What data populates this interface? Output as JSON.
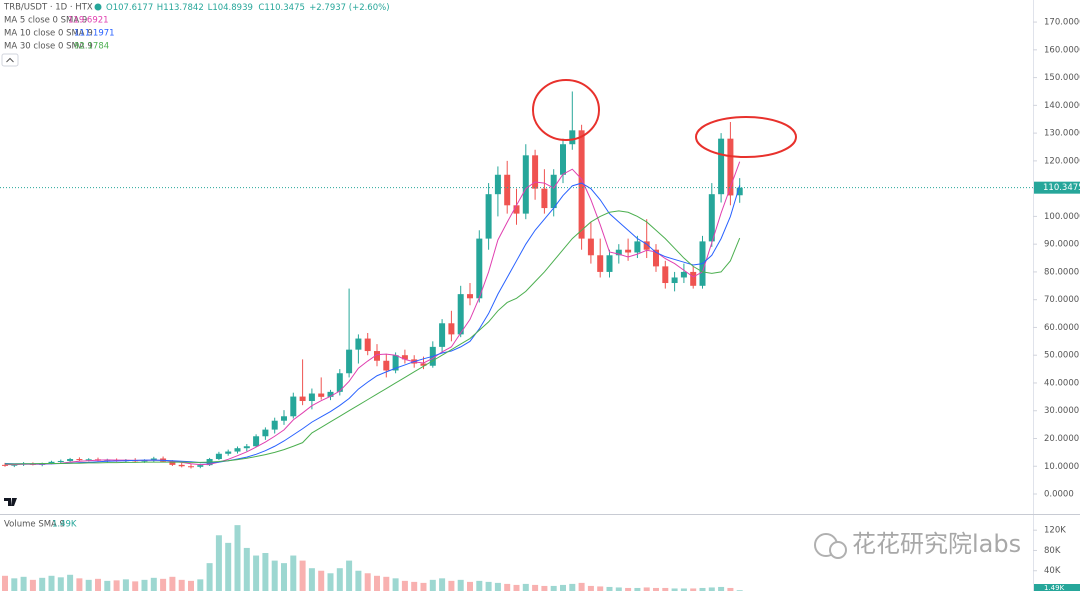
{
  "chart_data": [
    {
      "type": "candlestick",
      "symbol": "TRB/USDT · 1D · HTX",
      "ohlc_labels": [
        "O107.6177",
        "H113.7842",
        "L104.8939",
        "C110.3475",
        "+2.7937 (+2.60%)"
      ],
      "up_color": "#26a69a",
      "down_color": "#ef5350",
      "open": [
        10.5,
        10.2,
        10.6,
        11.0,
        10.5,
        11.1,
        11.6,
        11.9,
        12.6,
        12.2,
        12.5,
        12.0,
        12.3,
        11.9,
        12.2,
        11.8,
        12.1,
        12.8,
        11.7,
        10.5,
        10.0,
        9.8,
        10.4,
        12.6,
        14.5,
        15.3,
        16.5,
        17.2,
        20.8,
        23.2,
        26.4,
        28.0,
        35.1,
        33.5,
        36.2,
        35.0,
        36.8,
        43.5,
        52.0,
        56.0,
        51.5,
        48.0,
        44.5,
        50.0,
        48.5,
        47.0,
        46.2,
        53.0,
        61.5,
        57.5,
        72.0,
        70.5,
        92.0,
        108.0,
        115.0,
        104.0,
        101.0,
        122.0,
        110.0,
        103.0,
        115.0,
        126.0,
        131.0,
        92.0,
        86.0,
        80.0,
        86.0,
        88.0,
        87.0,
        91.0,
        88.0,
        82.0,
        76.0,
        78.0,
        80.0,
        75.0,
        91.0,
        108.0,
        128.0,
        107.6177
      ],
      "high": [
        11.2,
        10.9,
        11.5,
        11.4,
        11.3,
        12.0,
        12.4,
        13.0,
        13.2,
        12.9,
        13.1,
        12.7,
        12.8,
        12.6,
        12.9,
        12.5,
        13.4,
        13.5,
        12.2,
        11.3,
        10.8,
        10.9,
        13.0,
        15.2,
        16.0,
        17.1,
        18.0,
        21.5,
        24.0,
        27.5,
        30.2,
        36.5,
        48.5,
        38.0,
        42.0,
        37.5,
        45.0,
        74.0,
        57.5,
        58.0,
        54.0,
        50.5,
        51.0,
        52.0,
        50.0,
        49.5,
        55.0,
        63.0,
        66.0,
        75.0,
        76.0,
        95.0,
        112.0,
        118.0,
        120.0,
        110.0,
        126.0,
        124.0,
        117.0,
        117.0,
        128.0,
        145.0,
        133.0,
        98.0,
        92.0,
        88.0,
        90.0,
        92.0,
        93.0,
        99.0,
        90.0,
        84.0,
        80.0,
        83.0,
        82.0,
        93.0,
        112.0,
        130.0,
        134.0,
        113.7842
      ],
      "low": [
        9.8,
        9.7,
        10.1,
        10.3,
        10.0,
        10.7,
        11.0,
        11.5,
        11.9,
        11.7,
        11.8,
        11.4,
        11.6,
        11.3,
        11.5,
        11.2,
        11.6,
        11.4,
        10.1,
        9.6,
        9.2,
        9.3,
        10.1,
        12.2,
        13.8,
        14.6,
        15.4,
        16.8,
        19.5,
        21.8,
        24.9,
        27.2,
        32.0,
        30.5,
        34.0,
        33.8,
        35.5,
        42.0,
        47.0,
        50.0,
        46.0,
        42.0,
        43.5,
        47.0,
        45.5,
        45.0,
        45.5,
        51.0,
        55.0,
        56.5,
        68.0,
        69.0,
        88.0,
        100.0,
        101.0,
        97.0,
        99.0,
        106.0,
        101.0,
        100.0,
        112.0,
        124.0,
        88.0,
        83.0,
        78.0,
        78.0,
        83.0,
        84.0,
        85.0,
        85.0,
        80.0,
        74.0,
        73.0,
        76.0,
        74.0,
        74.0,
        89.0,
        105.0,
        104.0,
        104.8939
      ],
      "close": [
        10.2,
        10.6,
        11.0,
        10.5,
        11.1,
        11.6,
        11.9,
        12.6,
        12.2,
        12.5,
        12.0,
        12.3,
        11.9,
        12.2,
        11.8,
        12.1,
        12.8,
        11.7,
        10.5,
        10.0,
        9.8,
        10.4,
        12.6,
        14.5,
        15.3,
        16.5,
        17.2,
        20.8,
        23.2,
        26.4,
        28.0,
        35.1,
        33.5,
        36.2,
        35.0,
        36.8,
        43.5,
        52.0,
        56.0,
        51.5,
        48.0,
        44.5,
        50.0,
        48.5,
        47.0,
        46.2,
        53.0,
        61.5,
        57.5,
        72.0,
        70.5,
        92.0,
        108.0,
        115.0,
        104.0,
        101.0,
        122.0,
        110.0,
        103.0,
        115.0,
        126.0,
        131.0,
        92.0,
        86.0,
        80.0,
        86.0,
        88.0,
        87.0,
        91.0,
        88.0,
        82.0,
        76.0,
        78.0,
        80.0,
        75.0,
        91.0,
        108.0,
        128.0,
        107.5538,
        110.3475
      ],
      "series": [
        {
          "name": "MA 5 close 0 SMA 9",
          "color": "#e040b0",
          "last_value": 119.6921,
          "values": [
            10.6,
            10.6,
            10.7,
            10.7,
            10.7,
            10.9,
            11.1,
            11.5,
            11.8,
            12.0,
            12.2,
            12.3,
            12.2,
            12.2,
            12.1,
            12.1,
            12.2,
            12.1,
            11.8,
            11.4,
            10.9,
            10.6,
            10.7,
            11.5,
            12.5,
            13.8,
            15.2,
            16.9,
            18.7,
            20.8,
            23.1,
            26.7,
            29.2,
            31.8,
            33.6,
            35.2,
            37.1,
            40.6,
            45.3,
            47.9,
            50.2,
            50.4,
            50.0,
            48.5,
            47.6,
            47.2,
            48.9,
            51.2,
            53.0,
            58.0,
            62.9,
            70.7,
            80.0,
            91.5,
            97.9,
            104.0,
            110.0,
            112.4,
            112.0,
            110.2,
            115.2,
            117.0,
            113.4,
            106.0,
            97.0,
            87.2,
            86.4,
            85.4,
            86.4,
            87.8,
            87.2,
            84.8,
            83.0,
            80.6,
            78.2,
            80.0,
            90.5,
            101.2,
            110.5,
            119.6921
          ]
        },
        {
          "name": "MA 10 close 0 SMA 9",
          "color": "#2962ff",
          "last_value": 111.1971,
          "values": [
            11.0,
            10.9,
            10.9,
            10.9,
            10.9,
            10.9,
            11.0,
            11.1,
            11.3,
            11.4,
            11.6,
            11.8,
            11.9,
            12.0,
            12.1,
            12.2,
            12.2,
            12.1,
            12.0,
            11.8,
            11.6,
            11.3,
            11.2,
            11.5,
            12.0,
            12.6,
            13.3,
            14.3,
            15.6,
            17.2,
            19.1,
            21.3,
            23.5,
            25.9,
            27.8,
            29.7,
            31.9,
            34.4,
            37.8,
            40.3,
            42.6,
            44.0,
            45.3,
            46.5,
            47.7,
            48.7,
            49.6,
            50.8,
            51.5,
            53.0,
            55.0,
            59.5,
            65.0,
            72.0,
            78.0,
            84.0,
            90.0,
            95.0,
            99.0,
            103.0,
            107.5,
            111.0,
            112.0,
            110.0,
            106.0,
            101.0,
            98.0,
            95.0,
            92.0,
            90.0,
            87.0,
            85.5,
            84.5,
            83.5,
            82.5,
            83.0,
            86.0,
            92.0,
            100.0,
            111.1971
          ]
        },
        {
          "name": "MA 30 close 0 SMA 9",
          "color": "#4caf50",
          "last_value": 92.1784,
          "values": [
            10.8,
            10.8,
            10.9,
            10.9,
            11.0,
            11.0,
            11.0,
            11.1,
            11.1,
            11.2,
            11.2,
            11.3,
            11.3,
            11.4,
            11.4,
            11.5,
            11.5,
            11.5,
            11.5,
            11.5,
            11.4,
            11.4,
            11.5,
            11.7,
            12.0,
            12.4,
            12.9,
            13.5,
            14.2,
            15.0,
            16.0,
            17.2,
            18.5,
            22.0,
            24.0,
            26.0,
            28.0,
            30.0,
            32.0,
            34.0,
            36.0,
            38.0,
            40.0,
            42.0,
            44.0,
            46.0,
            48.0,
            50.0,
            52.0,
            54.0,
            56.0,
            59.0,
            62.0,
            66.0,
            69.0,
            70.5,
            73.0,
            76.5,
            80.0,
            84.0,
            88.0,
            92.0,
            95.0,
            98.0,
            100.0,
            101.5,
            102.0,
            101.5,
            100.0,
            98.0,
            95.0,
            92.0,
            88.5,
            85.0,
            82.0,
            80.0,
            79.5,
            80.0,
            84.0,
            92.1784
          ]
        }
      ],
      "ylim": [
        -7.2,
        177.95
      ],
      "yticks": [
        {
          "value": 0,
          "label": "0.0000"
        },
        {
          "value": 10,
          "label": "10.0000"
        },
        {
          "value": 20,
          "label": "20.0000"
        },
        {
          "value": 30,
          "label": "30.0000"
        },
        {
          "value": 40,
          "label": "40.0000"
        },
        {
          "value": 50,
          "label": "50.0000"
        },
        {
          "value": 60,
          "label": "60.0000"
        },
        {
          "value": 70,
          "label": "70.0000"
        },
        {
          "value": 80,
          "label": "80.0000"
        },
        {
          "value": 90,
          "label": "90.0000"
        },
        {
          "value": 100,
          "label": "100.0000"
        },
        {
          "value": 110,
          "label": "110.0000"
        },
        {
          "value": 120,
          "label": "120.0000"
        },
        {
          "value": 130,
          "label": "130.0000"
        },
        {
          "value": 140,
          "label": "140.0000"
        },
        {
          "value": 150,
          "label": "150.0000"
        },
        {
          "value": 160,
          "label": "160.0000"
        },
        {
          "value": 170,
          "label": "170.0000"
        }
      ],
      "grid": false
    },
    {
      "type": "volume",
      "legend_name": "Volume SMA 9",
      "legend_value": "1.49K",
      "values": [
        30000,
        25000,
        28000,
        22000,
        26000,
        30000,
        27000,
        32000,
        25000,
        22000,
        24000,
        20000,
        21000,
        23000,
        19000,
        22000,
        26000,
        24000,
        28000,
        22000,
        20000,
        23000,
        55000,
        110000,
        95000,
        130000,
        85000,
        70000,
        75000,
        60000,
        55000,
        70000,
        60000,
        45000,
        40000,
        35000,
        45000,
        60000,
        40000,
        35000,
        30000,
        28000,
        25000,
        20000,
        18000,
        16000,
        22000,
        25000,
        20000,
        22000,
        18000,
        20000,
        18000,
        16000,
        14000,
        12000,
        14000,
        12000,
        10000,
        10000,
        12000,
        14000,
        16000,
        10000,
        9000,
        8000,
        7000,
        6000,
        6000,
        7000,
        6000,
        6000,
        5000,
        5000,
        5000,
        6000,
        7000,
        8000,
        6000,
        1490
      ],
      "ylim": [
        0,
        150000
      ],
      "yticks": [
        {
          "value": 40000,
          "label": "40K"
        },
        {
          "value": 80000,
          "label": "80K"
        },
        {
          "value": 120000,
          "label": "120K"
        }
      ]
    }
  ],
  "watermark": "花花研究院labs"
}
